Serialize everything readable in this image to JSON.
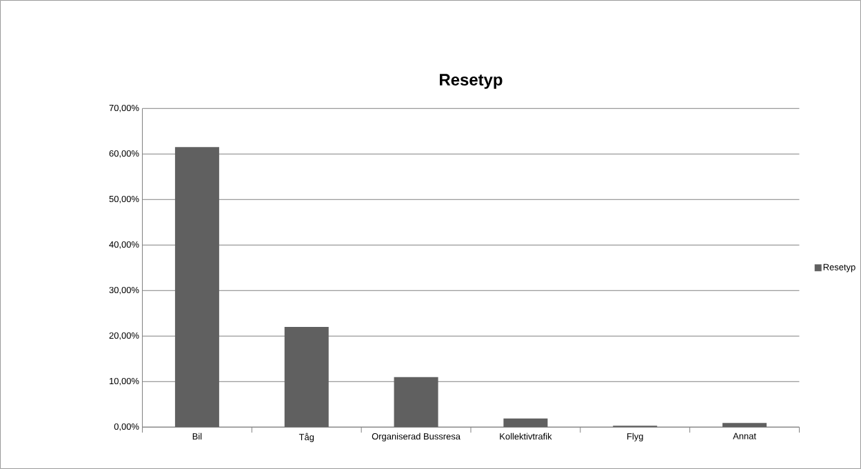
{
  "chart_data": {
    "type": "bar",
    "title": "Resetyp",
    "categories": [
      "Bil",
      "Tåg",
      "Organiserad Bussresa",
      "Kollektivtrafik",
      "Flyg",
      "Annat"
    ],
    "series": [
      {
        "name": "Resetyp",
        "color": "#606060",
        "values": [
          61.5,
          22.0,
          11.0,
          1.9,
          0.3,
          0.9
        ]
      }
    ],
    "ylim": [
      0,
      70
    ],
    "yticks": [
      {
        "value": 0,
        "label": "0,00%"
      },
      {
        "value": 10,
        "label": "10,00%"
      },
      {
        "value": 20,
        "label": "20,00%"
      },
      {
        "value": 30,
        "label": "30,00%"
      },
      {
        "value": 40,
        "label": "40,00%"
      },
      {
        "value": 50,
        "label": "50,00%"
      },
      {
        "value": 60,
        "label": "60,00%"
      },
      {
        "value": 70,
        "label": "70,00%"
      }
    ],
    "grid": "y",
    "legend": "right"
  }
}
